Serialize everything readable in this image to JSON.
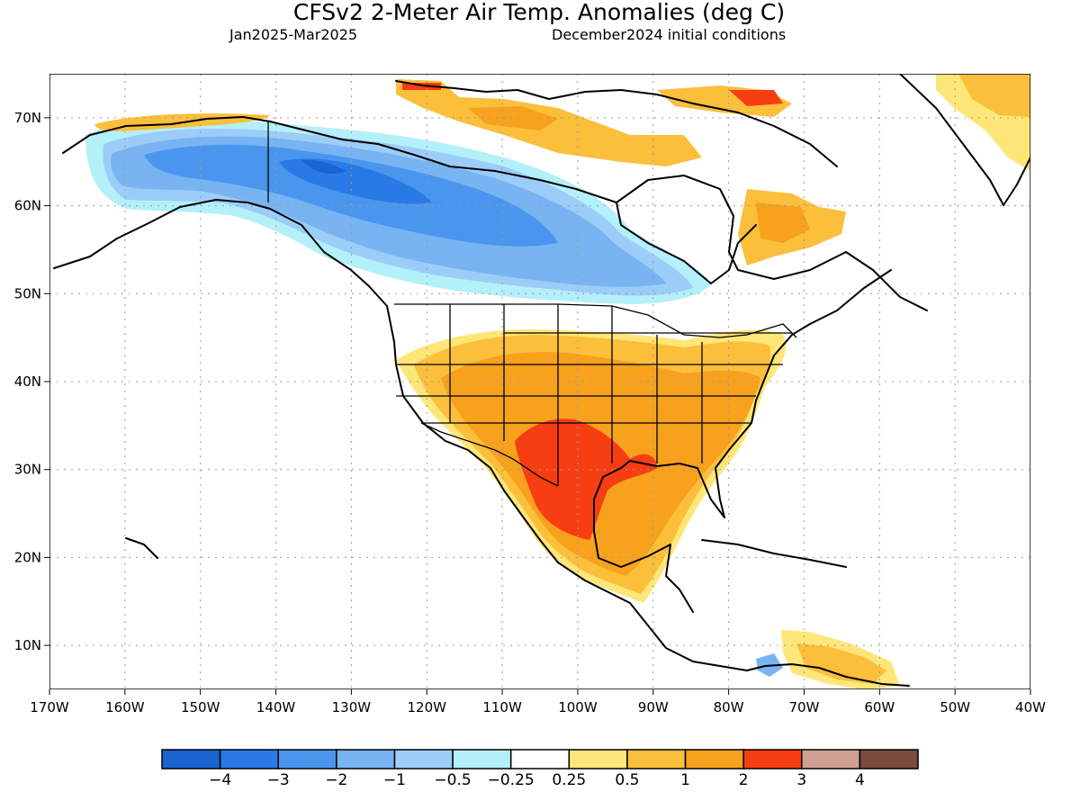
{
  "header": {
    "title": "CFSv2 2-Meter Air Temp. Anomalies (deg C)",
    "period": "Jan2025-Mar2025",
    "init": "December2024 initial conditions"
  },
  "map": {
    "lon_range": [
      -170,
      -40
    ],
    "lat_range": [
      5,
      75
    ],
    "lon_labels": [
      "170W",
      "160W",
      "150W",
      "140W",
      "130W",
      "120W",
      "110W",
      "100W",
      "90W",
      "80W",
      "70W",
      "60W",
      "50W",
      "40W"
    ],
    "lon_values": [
      -170,
      -160,
      -150,
      -140,
      -130,
      -120,
      -110,
      -100,
      -90,
      -80,
      -70,
      -60,
      -50,
      -40
    ],
    "lat_labels": [
      "10N",
      "20N",
      "30N",
      "40N",
      "50N",
      "60N",
      "70N"
    ],
    "lat_values": [
      10,
      20,
      30,
      40,
      50,
      60,
      70
    ],
    "grid": "dotted"
  },
  "colorbar": {
    "colors": [
      "#1a64d2",
      "#2a7ae6",
      "#4a96ee",
      "#78b4f2",
      "#9ccdf8",
      "#b4f0fa",
      "#ffffff",
      "#ffe678",
      "#fbbf3c",
      "#f7a11d",
      "#f73d12",
      "#cfa193",
      "#7b4b3e"
    ],
    "labels": [
      "−4",
      "−3",
      "−2",
      "−1",
      "−0.5",
      "−0.25",
      "0.25",
      "0.5",
      "1",
      "2",
      "3",
      "4"
    ]
  }
}
